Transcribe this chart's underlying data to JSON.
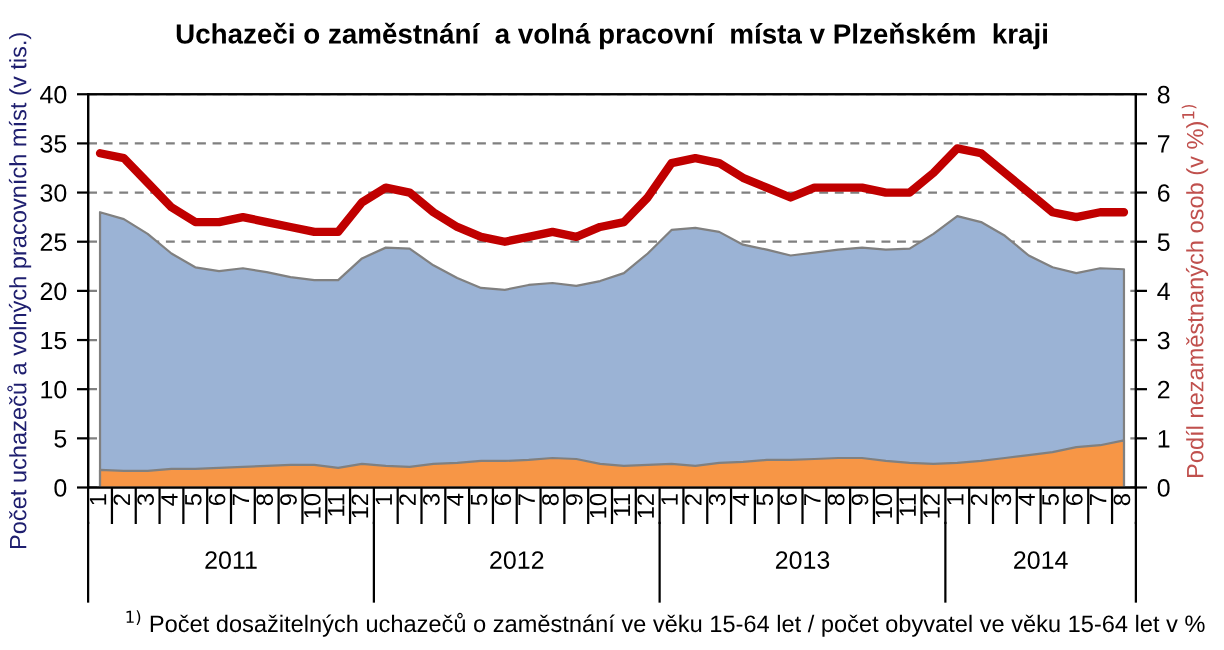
{
  "chart_data": {
    "type": "area",
    "title": "Uchazeči o zaměstnání  a volná pracovní  místa v Plzeňském  kraji",
    "ylabel": "Počet uchazečů a volných pracovních míst (v tis.)",
    "y2label": "Podíl nezaměstnaných osob (v %)$^{1)}$",
    "categories": [
      "1",
      "2",
      "3",
      "4",
      "5",
      "6",
      "7",
      "8",
      "9",
      "10",
      "11",
      "12",
      "1",
      "2",
      "3",
      "4",
      "5",
      "6",
      "7",
      "8",
      "9",
      "10",
      "11",
      "12",
      "1",
      "2",
      "3",
      "4",
      "5",
      "6",
      "7",
      "8",
      "9",
      "10",
      "11",
      "12",
      "1",
      "2",
      "3",
      "4",
      "5",
      "6",
      "7",
      "8"
    ],
    "series": [
      {
        "color": "#9bb3d5",
        "values": [
          28.0,
          27.3,
          25.8,
          23.8,
          22.4,
          22.0,
          22.3,
          21.9,
          21.4,
          21.1,
          21.1,
          23.3,
          24.4,
          24.3,
          22.6,
          21.3,
          20.3,
          20.1,
          20.6,
          20.8,
          20.5,
          21.0,
          21.8,
          23.8,
          26.2,
          26.4,
          26.0,
          24.7,
          24.2,
          23.6,
          23.9,
          24.2,
          24.4,
          24.2,
          24.3,
          25.8,
          27.6,
          27.0,
          25.6,
          23.6,
          22.4,
          21.8,
          22.3,
          22.2
        ]
      },
      {
        "color": "#f79646",
        "values": [
          1.8,
          1.7,
          1.7,
          1.9,
          1.9,
          2.0,
          2.1,
          2.2,
          2.3,
          2.3,
          2.0,
          2.4,
          2.2,
          2.1,
          2.4,
          2.5,
          2.7,
          2.7,
          2.8,
          3.0,
          2.9,
          2.4,
          2.2,
          2.3,
          2.4,
          2.2,
          2.5,
          2.6,
          2.8,
          2.8,
          2.9,
          3.0,
          3.0,
          2.7,
          2.5,
          2.4,
          2.5,
          2.7,
          3.0,
          3.3,
          3.6,
          4.1,
          4.3,
          4.8
        ]
      },
      {
        "type": "line",
        "axis": "y2",
        "color": "#c00000",
        "values": [
          6.8,
          6.7,
          6.2,
          5.7,
          5.4,
          5.4,
          5.5,
          5.4,
          5.3,
          5.2,
          5.2,
          5.8,
          6.1,
          6.0,
          5.6,
          5.3,
          5.1,
          5.0,
          5.1,
          5.2,
          5.1,
          5.3,
          5.4,
          5.9,
          6.6,
          6.7,
          6.6,
          6.3,
          6.1,
          5.9,
          6.1,
          6.1,
          6.1,
          6.0,
          6.0,
          6.4,
          6.9,
          6.8,
          6.4,
          6.0,
          5.6,
          5.5,
          5.6,
          5.6
        ]
      }
    ],
    "ylim": [
      0,
      40
    ],
    "yticks": [
      0,
      5,
      10,
      15,
      20,
      25,
      30,
      35,
      40
    ],
    "y2lim": [
      0,
      8
    ],
    "y2ticks": [
      0,
      1,
      2,
      3,
      4,
      5,
      6,
      7,
      8
    ],
    "grid": "y",
    "line_style": "solid",
    "annotations": [
      "2011",
      "2012",
      "2013",
      "2014",
      "$^{1)}$ Počet dosažitelných uchazečů o zaměstnání ve věku 15-64 let / počet obyvatel ve věku 15-64 let v %"
    ]
  }
}
